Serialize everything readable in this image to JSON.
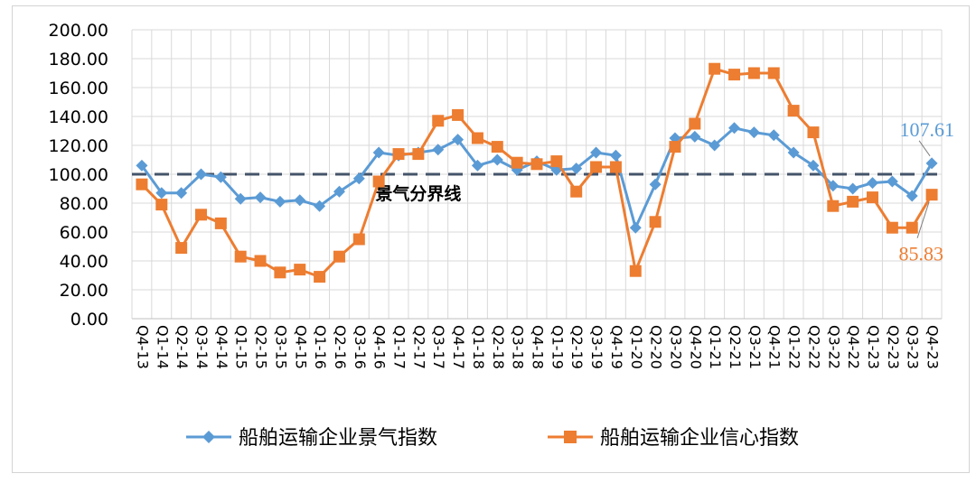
{
  "chart_data": {
    "type": "line",
    "categories": [
      "Q4-13",
      "Q1-14",
      "Q2-14",
      "Q3-14",
      "Q4-14",
      "Q1-15",
      "Q2-15",
      "Q3-15",
      "Q4-15",
      "Q1-16",
      "Q2-16",
      "Q3-16",
      "Q4-16",
      "Q1-17",
      "Q2-17",
      "Q3-17",
      "Q4-17",
      "Q1-18",
      "Q2-18",
      "Q3-18",
      "Q4-18",
      "Q1-19",
      "Q2-19",
      "Q3-19",
      "Q4-19",
      "Q1-20",
      "Q2-20",
      "Q3-20",
      "Q4-20",
      "Q1-21",
      "Q2-21",
      "Q3-21",
      "Q4-21",
      "Q1-22",
      "Q2-22",
      "Q3-22",
      "Q4-22",
      "Q1-23",
      "Q2-23",
      "Q3-23",
      "Q4-23"
    ],
    "series": [
      {
        "name": "船舶运输企业景气指数",
        "color": "#5b9bd5",
        "marker": "diamond",
        "values": [
          106,
          87,
          87,
          100,
          98,
          83,
          84,
          81,
          82,
          78,
          88,
          97,
          115,
          113,
          115,
          117,
          124,
          106,
          110,
          103,
          109,
          103,
          104,
          115,
          113,
          63,
          93,
          125,
          126,
          120,
          132,
          129,
          127,
          115,
          106,
          92,
          90,
          94,
          95,
          85,
          107.61
        ]
      },
      {
        "name": "船舶运输企业信心指数",
        "color": "#ed7d31",
        "marker": "square",
        "values": [
          93,
          79,
          49,
          72,
          66,
          43,
          40,
          32,
          34,
          29,
          43,
          55,
          95,
          114,
          114,
          137,
          141,
          125,
          119,
          108,
          107,
          109,
          88,
          105,
          105,
          33,
          67,
          119,
          135,
          173,
          169,
          170,
          170,
          144,
          129,
          78,
          81,
          84,
          63,
          63,
          85.83
        ]
      }
    ],
    "ylim": [
      0,
      200
    ],
    "yticks": [
      "0.00",
      "20.00",
      "40.00",
      "60.00",
      "80.00",
      "100.00",
      "120.00",
      "140.00",
      "160.00",
      "180.00",
      "200.00"
    ],
    "grid": true,
    "reference_line": {
      "value": 100,
      "label": "景气分界线"
    },
    "annotations": [
      {
        "text": "107.61",
        "series": 0,
        "color": "#5b9bd5"
      },
      {
        "text": "85.83",
        "series": 1,
        "color": "#ed7d31"
      }
    ],
    "legend_position": "bottom"
  }
}
